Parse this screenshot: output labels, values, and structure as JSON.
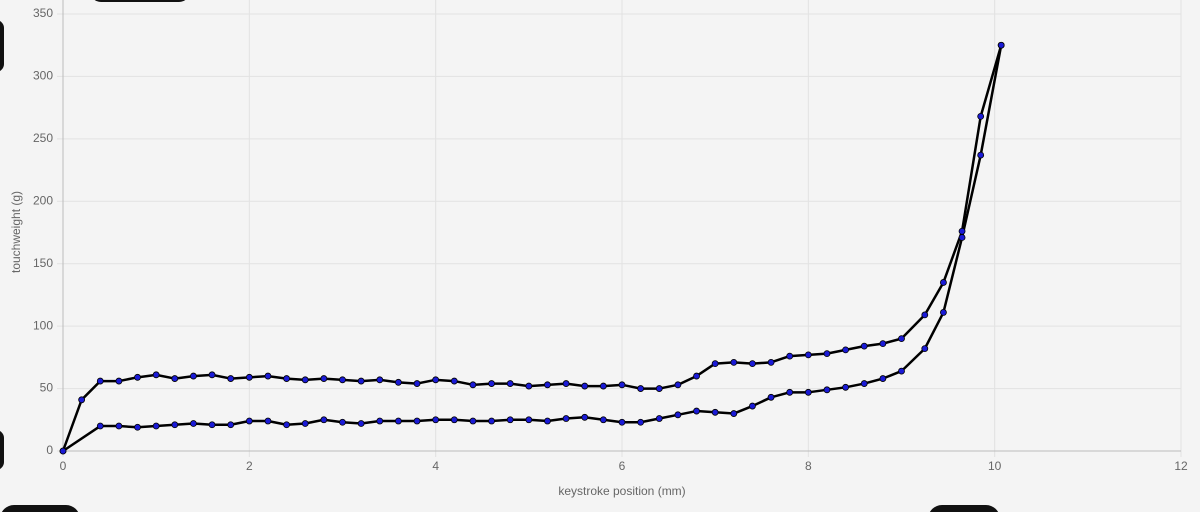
{
  "chart_data": {
    "type": "line",
    "x_label": "keystroke position (mm)",
    "y_label": "touchweight (g)",
    "xlim": [
      0,
      12
    ],
    "ylim": [
      0,
      350
    ],
    "xticks": [
      0,
      2,
      4,
      6,
      8,
      10,
      12
    ],
    "yticks": [
      0,
      50,
      100,
      150,
      200,
      250,
      300,
      350
    ],
    "grid": true,
    "line_color": "#000000",
    "point_color": "#1a1ad6",
    "series": [
      {
        "x": [
          0,
          0.2,
          0.4,
          0.6,
          0.8,
          1.0,
          1.2,
          1.4,
          1.6,
          1.8,
          2.0,
          2.2,
          2.4,
          2.6,
          2.8,
          3.0,
          3.2,
          3.4,
          3.6,
          3.8,
          4.0,
          4.2,
          4.4,
          4.6,
          4.8,
          5.0,
          5.2,
          5.4,
          5.6,
          5.8,
          6.0,
          6.2,
          6.4,
          6.6,
          6.8,
          7.0,
          7.2,
          7.4,
          7.6,
          7.8,
          8.0,
          8.2,
          8.4,
          8.6,
          8.8,
          9.0,
          9.25,
          9.45,
          9.65,
          9.85,
          10.07
        ],
        "values": [
          0,
          41,
          56,
          56,
          59,
          61,
          58,
          60,
          61,
          58,
          59,
          60,
          58,
          57,
          58,
          57,
          56,
          57,
          55,
          54,
          57,
          56,
          53,
          54,
          54,
          52,
          53,
          54,
          52,
          52,
          53,
          50,
          50,
          53,
          60,
          70,
          71,
          70,
          71,
          76,
          77,
          78,
          81,
          84,
          86,
          90,
          109,
          135,
          176,
          268,
          325
        ]
      },
      {
        "x": [
          0,
          0.4,
          0.6,
          0.8,
          1.0,
          1.2,
          1.4,
          1.6,
          1.8,
          2.0,
          2.2,
          2.4,
          2.6,
          2.8,
          3.0,
          3.2,
          3.4,
          3.6,
          3.8,
          4.0,
          4.2,
          4.4,
          4.6,
          4.8,
          5.0,
          5.2,
          5.4,
          5.6,
          5.8,
          6.0,
          6.2,
          6.4,
          6.6,
          6.8,
          7.0,
          7.2,
          7.4,
          7.6,
          7.8,
          8.0,
          8.2,
          8.4,
          8.6,
          8.8,
          9.0,
          9.25,
          9.45,
          9.65,
          9.85,
          10.07
        ],
        "values": [
          0,
          20,
          20,
          19,
          20,
          21,
          22,
          21,
          21,
          24,
          24,
          21,
          22,
          25,
          23,
          22,
          24,
          24,
          24,
          25,
          25,
          24,
          24,
          25,
          25,
          24,
          26,
          27,
          25,
          23,
          23,
          26,
          29,
          32,
          31,
          30,
          36,
          43,
          47,
          47,
          49,
          51,
          54,
          58,
          64,
          82,
          111,
          171,
          237,
          325
        ]
      }
    ]
  }
}
